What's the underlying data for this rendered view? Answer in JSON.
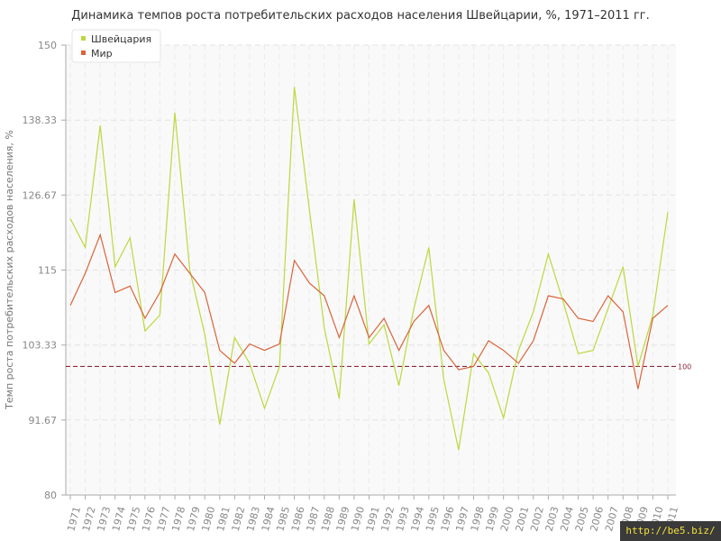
{
  "chart_data": {
    "type": "line",
    "title": "Динамика темпов роста потребительских расходов населения Швейцарии, %, 1971–2011 гг.",
    "xlabel": "",
    "ylabel": "Темп роста потребительских расходов населения, %",
    "ylim": [
      80,
      150
    ],
    "yticks": [
      "80",
      "91.67",
      "103.33",
      "115",
      "126.67",
      "138.33",
      "150"
    ],
    "reference_line": {
      "value": 100,
      "label": "100"
    },
    "legend_position": "top-left",
    "grid": true,
    "categories": [
      "1971",
      "1972",
      "1973",
      "1974",
      "1975",
      "1976",
      "1977",
      "1978",
      "1979",
      "1980",
      "1981",
      "1982",
      "1983",
      "1984",
      "1985",
      "1986",
      "1987",
      "1988",
      "1989",
      "1990",
      "1991",
      "1992",
      "1993",
      "1994",
      "1995",
      "1996",
      "1997",
      "1998",
      "1999",
      "2000",
      "2001",
      "2002",
      "2003",
      "2004",
      "2005",
      "2006",
      "2007",
      "2008",
      "2009",
      "2010",
      "2011"
    ],
    "series": [
      {
        "name": "Швейцария",
        "color": "#bcd83e",
        "values": [
          123,
          118.5,
          137.5,
          115.5,
          120,
          105.5,
          108,
          139.5,
          115,
          105,
          91,
          104.5,
          100.5,
          93.5,
          100,
          143.5,
          124.5,
          106,
          95,
          126,
          103.5,
          106.5,
          97,
          109,
          118.5,
          98,
          87,
          102,
          99,
          92,
          102.5,
          108.5,
          117.5,
          110,
          102,
          102.5,
          109,
          115.5,
          100,
          108,
          124
        ]
      },
      {
        "name": "Мир",
        "color": "#d9643a",
        "values": [
          109.5,
          114.5,
          120.5,
          111.5,
          112.5,
          107.5,
          111.5,
          117.5,
          114.5,
          111.5,
          102.5,
          100.5,
          103.5,
          102.5,
          103.5,
          116.5,
          113,
          111,
          104.5,
          111,
          104.5,
          107.5,
          102.5,
          107,
          109.5,
          102.5,
          99.5,
          100,
          104,
          102.5,
          100.5,
          104,
          111,
          110.5,
          107.5,
          107,
          111,
          108.5,
          96.5,
          107.5,
          109.5
        ]
      }
    ]
  },
  "watermark": "http://be5.biz/"
}
